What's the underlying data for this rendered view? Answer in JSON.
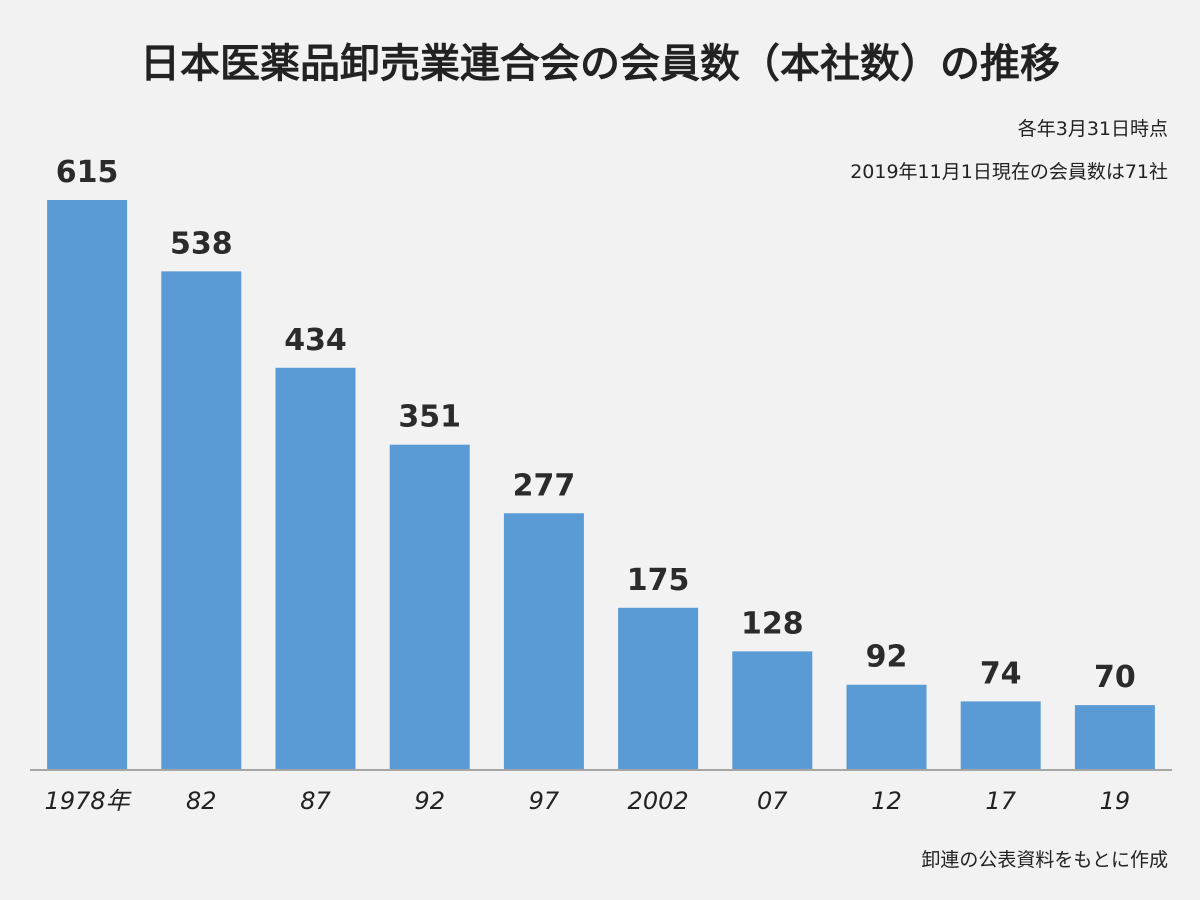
{
  "title": "日本医薬品卸売業連合会の会員数（本社数）の推移",
  "notes": {
    "timing": "各年3月31日時点",
    "current": "2019年11月1日現在の会員数は71社"
  },
  "source": "卸連の公表資料をもとに作成",
  "colors": {
    "bar": "#5b9bd5",
    "background": "#f2f2f2",
    "text": "#222222"
  },
  "chart_data": {
    "type": "bar",
    "categories": [
      "1978年",
      "82",
      "87",
      "92",
      "97",
      "2002",
      "07",
      "12",
      "17",
      "19"
    ],
    "values": [
      615,
      538,
      434,
      351,
      277,
      175,
      128,
      92,
      74,
      70
    ],
    "title": "日本医薬品卸売業連合会の会員数（本社数）の推移",
    "xlabel": "",
    "ylabel": "",
    "ylim": [
      0,
      615
    ],
    "grid": false,
    "legend": "none",
    "data_labels": true
  }
}
